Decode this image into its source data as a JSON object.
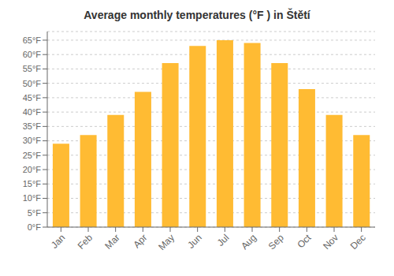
{
  "chart_data": {
    "type": "bar",
    "title": "Average monthly temperatures (°F ) in Štětí",
    "categories": [
      "Jan",
      "Feb",
      "Mar",
      "Apr",
      "May",
      "Jun",
      "Jul",
      "Aug",
      "Sep",
      "Oct",
      "Nov",
      "Dec"
    ],
    "values": [
      29,
      32,
      39,
      47,
      57,
      63,
      65,
      64,
      57,
      48,
      39,
      32
    ],
    "color": "#FFBB33",
    "ylim": [
      0,
      68
    ],
    "yticks": [
      {
        "value": 0,
        "label": "0°F"
      },
      {
        "value": 5,
        "label": "5°F"
      },
      {
        "value": 10,
        "label": "10°F"
      },
      {
        "value": 15,
        "label": "15°F"
      },
      {
        "value": 20,
        "label": "20°F"
      },
      {
        "value": 25,
        "label": "25°F"
      },
      {
        "value": 30,
        "label": "30°F"
      },
      {
        "value": 35,
        "label": "35°F"
      },
      {
        "value": 40,
        "label": "40°F"
      },
      {
        "value": 45,
        "label": "45°F"
      },
      {
        "value": 50,
        "label": "50°F"
      },
      {
        "value": 55,
        "label": "55°F"
      },
      {
        "value": 60,
        "label": "60°F"
      },
      {
        "value": 65,
        "label": "65°F"
      }
    ],
    "grid": true
  }
}
